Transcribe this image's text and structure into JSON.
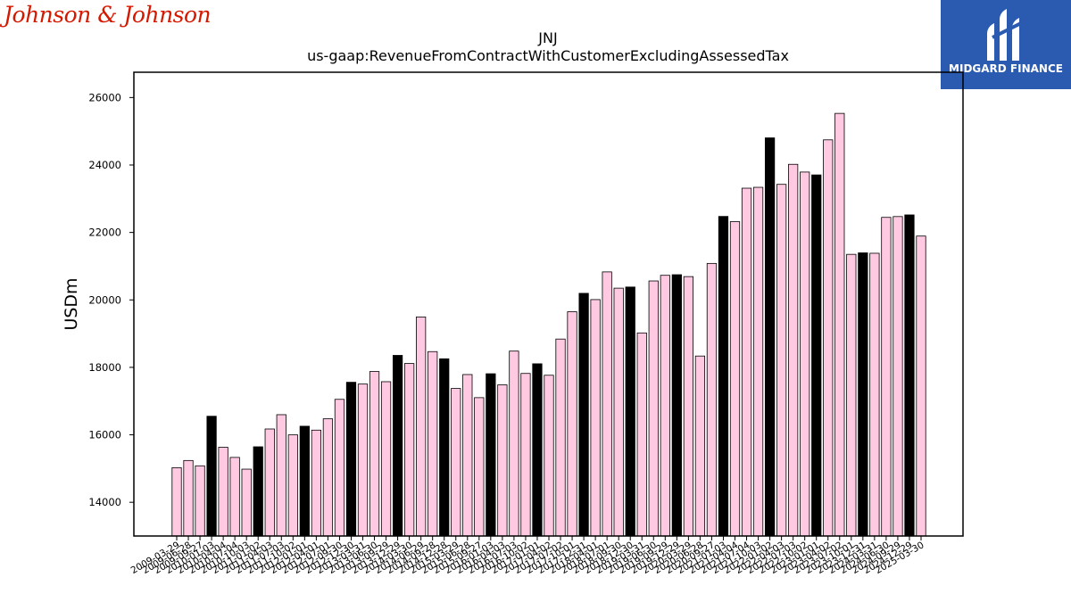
{
  "header": {
    "company_logo_text": "Johnson & Johnson",
    "publisher_logo_text": "MIDGARD FINANCE"
  },
  "colors": {
    "bar_pink": "#ffc9e1",
    "bar_black": "#000000",
    "brand_blue": "#2b5bb0",
    "jnj_red": "#d51900"
  },
  "chart_data": {
    "type": "bar",
    "title": "JNJ",
    "subtitle": "us-gaap:RevenueFromContractWithCustomerExcludingAssessedTax",
    "xlabel": "",
    "ylabel": "USDm",
    "ylim": [
      13000,
      26750
    ],
    "yticks": [
      14000,
      16000,
      18000,
      20000,
      22000,
      24000,
      26000
    ],
    "grid": false,
    "categories": [
      "2009-03-29",
      "2009-06-28",
      "2009-09-27",
      "2010-01-03",
      "2010-04-04",
      "2010-07-04",
      "2010-10-03",
      "2011-01-02",
      "2011-04-03",
      "2011-07-03",
      "2011-10-02",
      "2012-01-01",
      "2012-04-01",
      "2012-07-01",
      "2012-09-30",
      "2012-12-30",
      "2013-03-31",
      "2013-06-30",
      "2013-09-29",
      "2013-12-29",
      "2014-03-30",
      "2014-06-29",
      "2014-09-28",
      "2014-12-28",
      "2015-03-29",
      "2015-06-28",
      "2015-09-27",
      "2016-01-03",
      "2016-04-03",
      "2016-07-03",
      "2016-10-02",
      "2017-01-01",
      "2017-04-02",
      "2017-07-02",
      "2017-10-01",
      "2017-12-31",
      "2018-04-01",
      "2018-07-01",
      "2018-09-30",
      "2018-12-30",
      "2019-03-31",
      "2019-06-30",
      "2019-09-29",
      "2019-12-29",
      "2020-03-29",
      "2020-06-28",
      "2020-09-27",
      "2021-01-03",
      "2021-04-04",
      "2021-07-04",
      "2021-10-03",
      "2022-01-02",
      "2022-04-03",
      "2022-07-03",
      "2022-10-02",
      "2023-01-01",
      "2023-04-02",
      "2023-07-02",
      "2023-10-01",
      "2023-12-31",
      "2024-03-31",
      "2024-06-30",
      "2024-09-29",
      "2024-12-29",
      "2025-03-30"
    ],
    "values": [
      15026,
      15239,
      15081,
      16551,
      15631,
      15330,
      14982,
      15645,
      16173,
      16597,
      15999,
      16255,
      16139,
      16475,
      17052,
      17558,
      17505,
      17877,
      17575,
      18355,
      18115,
      19495,
      18467,
      18254,
      17374,
      17787,
      17102,
      17811,
      17482,
      18482,
      17820,
      18106,
      17766,
      18839,
      19650,
      20195,
      20009,
      20830,
      20348,
      20382,
      19021,
      20562,
      20729,
      20747,
      20691,
      18336,
      21082,
      22475,
      22321,
      23312,
      23338,
      24804,
      23426,
      24020,
      23791,
      23706,
      24746,
      25530,
      21351,
      21395,
      21383,
      22447,
      22471,
      22520,
      21893
    ],
    "highlight": [
      false,
      false,
      false,
      true,
      false,
      false,
      false,
      true,
      false,
      false,
      false,
      true,
      false,
      false,
      false,
      true,
      false,
      false,
      false,
      true,
      false,
      false,
      false,
      true,
      false,
      false,
      false,
      true,
      false,
      false,
      false,
      true,
      false,
      false,
      false,
      true,
      false,
      false,
      false,
      true,
      false,
      false,
      false,
      true,
      false,
      false,
      false,
      true,
      false,
      false,
      false,
      true,
      false,
      false,
      false,
      true,
      false,
      false,
      false,
      true,
      false,
      false,
      false,
      true,
      false
    ]
  }
}
